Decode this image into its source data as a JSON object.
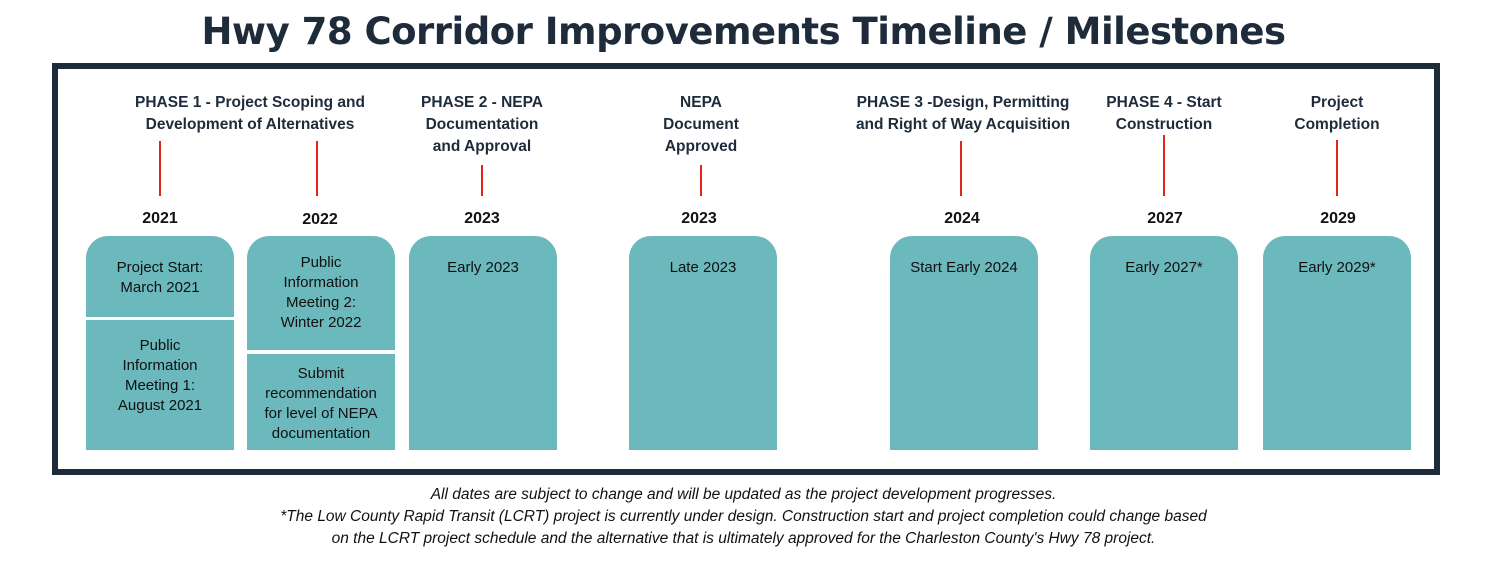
{
  "title": "Hwy 78 Corridor Improvements Timeline / Milestones",
  "phases": [
    {
      "line1": "PHASE 1 - Project Scoping and",
      "line2": "Development of Alternatives",
      "line3": ""
    },
    {
      "line1": "PHASE 2 - NEPA",
      "line2": "Documentation",
      "line3": "and Approval"
    },
    {
      "line1": "NEPA",
      "line2": "Document",
      "line3": "Approved"
    },
    {
      "line1": "PHASE 3 -Design, Permitting",
      "line2": "and Right of Way Acquisition",
      "line3": ""
    },
    {
      "line1": "PHASE 4 - Start",
      "line2": "Construction",
      "line3": ""
    },
    {
      "line1": "Project",
      "line2": "Completion",
      "line3": ""
    }
  ],
  "years": [
    "2021",
    "2022",
    "2023",
    "2023",
    "2024",
    "2027",
    "2029"
  ],
  "milestones": {
    "y2021_a": [
      "Project Start:",
      "March 2021"
    ],
    "y2021_b": [
      "Public",
      "Information",
      "Meeting 1:",
      "August 2021"
    ],
    "y2022_a": [
      "Public",
      "Information",
      "Meeting 2:",
      "Winter 2022"
    ],
    "y2022_b": [
      "Submit",
      "recommendation",
      "for level of NEPA",
      "documentation"
    ],
    "y2023_phase2": "Early 2023",
    "y2023_nepa": "Late 2023",
    "y2024": "Start Early 2024",
    "y2027": "Early 2027*",
    "y2029": "Early 2029*"
  },
  "footnotes": [
    "All dates are subject to change and will be updated as the project development progresses.",
    "*The Low County Rapid Transit (LCRT) project is currently under design. Construction start and project completion could change based",
    "on the LCRT project schedule and the alternative that is ultimately approved for the Charleston County's Hwy 78 project."
  ],
  "colors": {
    "navy": "#1d2b3a",
    "teal": "#6bb8bd",
    "tick_red": "#e0261c"
  }
}
